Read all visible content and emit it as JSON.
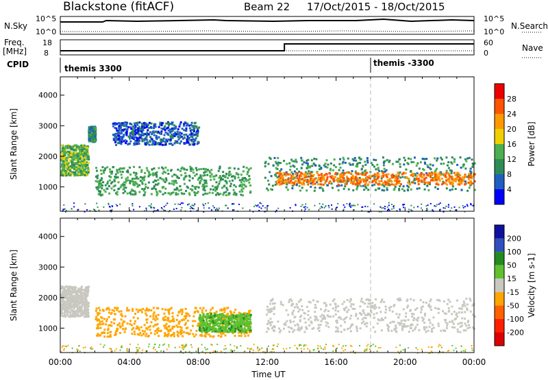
{
  "header": {
    "station": "Blackstone (fitACF)",
    "beam": "Beam 22",
    "date_range": "17/Oct/2015 - 18/Oct/2015"
  },
  "params": {
    "nsky_label": "N.Sky",
    "nsearch_label": "N.Search",
    "nsky_ticks": [
      "10^5",
      "10^0"
    ],
    "nsearch_ticks": [
      "10^5",
      "10^0"
    ],
    "freq_label": "Freq.",
    "freq_unit": "[MHz]",
    "freq_ticks": [
      "18",
      "8"
    ],
    "nave_label": "Nave",
    "nave_ticks": [
      "60",
      "0"
    ],
    "cpid_label": "CPID",
    "cpid_segments": [
      {
        "label": "themis 3300",
        "start_hour": 0
      },
      {
        "label": "themis -3300",
        "start_hour": 18
      }
    ],
    "freq_step": {
      "low_hours": [
        0,
        13
      ],
      "high_hours": [
        13,
        24
      ]
    },
    "nave_step": {
      "low_hours": [
        0,
        13
      ],
      "high_hours": [
        13,
        24
      ]
    }
  },
  "chart_data": [
    {
      "type": "heatmap",
      "title": "",
      "xlabel": "Time UT",
      "ylabel": "Slant Range [km]",
      "colorbar_label": "Power [dB]",
      "xlim": [
        "00:00",
        "24:00"
      ],
      "ylim": [
        200,
        4600
      ],
      "x_ticks": [
        "00:00",
        "04:00",
        "08:00",
        "12:00",
        "16:00",
        "20:00",
        "00:00"
      ],
      "y_ticks": [
        1000,
        2000,
        3000,
        4000
      ],
      "colorbar_ticks": [
        4,
        8,
        12,
        16,
        20,
        24,
        28
      ],
      "colorbar_colors": [
        "#0000ff",
        "#1f5fbf",
        "#2e8b57",
        "#4caf50",
        "#f0d000",
        "#ff9900",
        "#ff5500",
        "#ee0000"
      ],
      "regions": [
        {
          "t0": 0.0,
          "t1": 1.6,
          "r0": 1400,
          "r1": 2400,
          "value": 14
        },
        {
          "t0": 1.6,
          "t1": 2.0,
          "r0": 2500,
          "r1": 3000,
          "value": 10
        },
        {
          "t0": 2.0,
          "t1": 11.0,
          "r0": 750,
          "r1": 1700,
          "value": 12
        },
        {
          "t0": 3.0,
          "t1": 8.0,
          "r0": 2400,
          "r1": 3150,
          "value": 6
        },
        {
          "t0": 11.8,
          "t1": 24.0,
          "r0": 900,
          "r1": 2000,
          "value": 10
        },
        {
          "t0": 12.5,
          "t1": 24.0,
          "r0": 1100,
          "r1": 1500,
          "value": 24
        }
      ]
    },
    {
      "type": "heatmap",
      "title": "",
      "xlabel": "Time UT",
      "ylabel": "Slant Range [km]",
      "colorbar_label": "Velocity [m s-1]",
      "xlim": [
        "00:00",
        "24:00"
      ],
      "ylim": [
        200,
        4600
      ],
      "x_ticks": [
        "00:00",
        "04:00",
        "08:00",
        "12:00",
        "16:00",
        "20:00",
        "00:00"
      ],
      "y_ticks": [
        1000,
        2000,
        3000,
        4000
      ],
      "colorbar_ticks": [
        200,
        100,
        50,
        15,
        -15,
        -50,
        -100,
        -200
      ],
      "colorbar_colors": [
        "#1010a0",
        "#3050c0",
        "#228b22",
        "#60c030",
        "#c8c8c0",
        "#ffa500",
        "#ff6000",
        "#ff2000",
        "#dd0000"
      ],
      "regions": [
        {
          "t0": 0.0,
          "t1": 1.6,
          "r0": 1400,
          "r1": 2400,
          "value": 0
        },
        {
          "t0": 2.0,
          "t1": 11.0,
          "r0": 750,
          "r1": 1700,
          "value": -30
        },
        {
          "t0": 8.0,
          "t1": 11.0,
          "r0": 900,
          "r1": 1500,
          "value": 40
        },
        {
          "t0": 11.8,
          "t1": 24.0,
          "r0": 900,
          "r1": 2000,
          "value": 0
        }
      ]
    }
  ]
}
